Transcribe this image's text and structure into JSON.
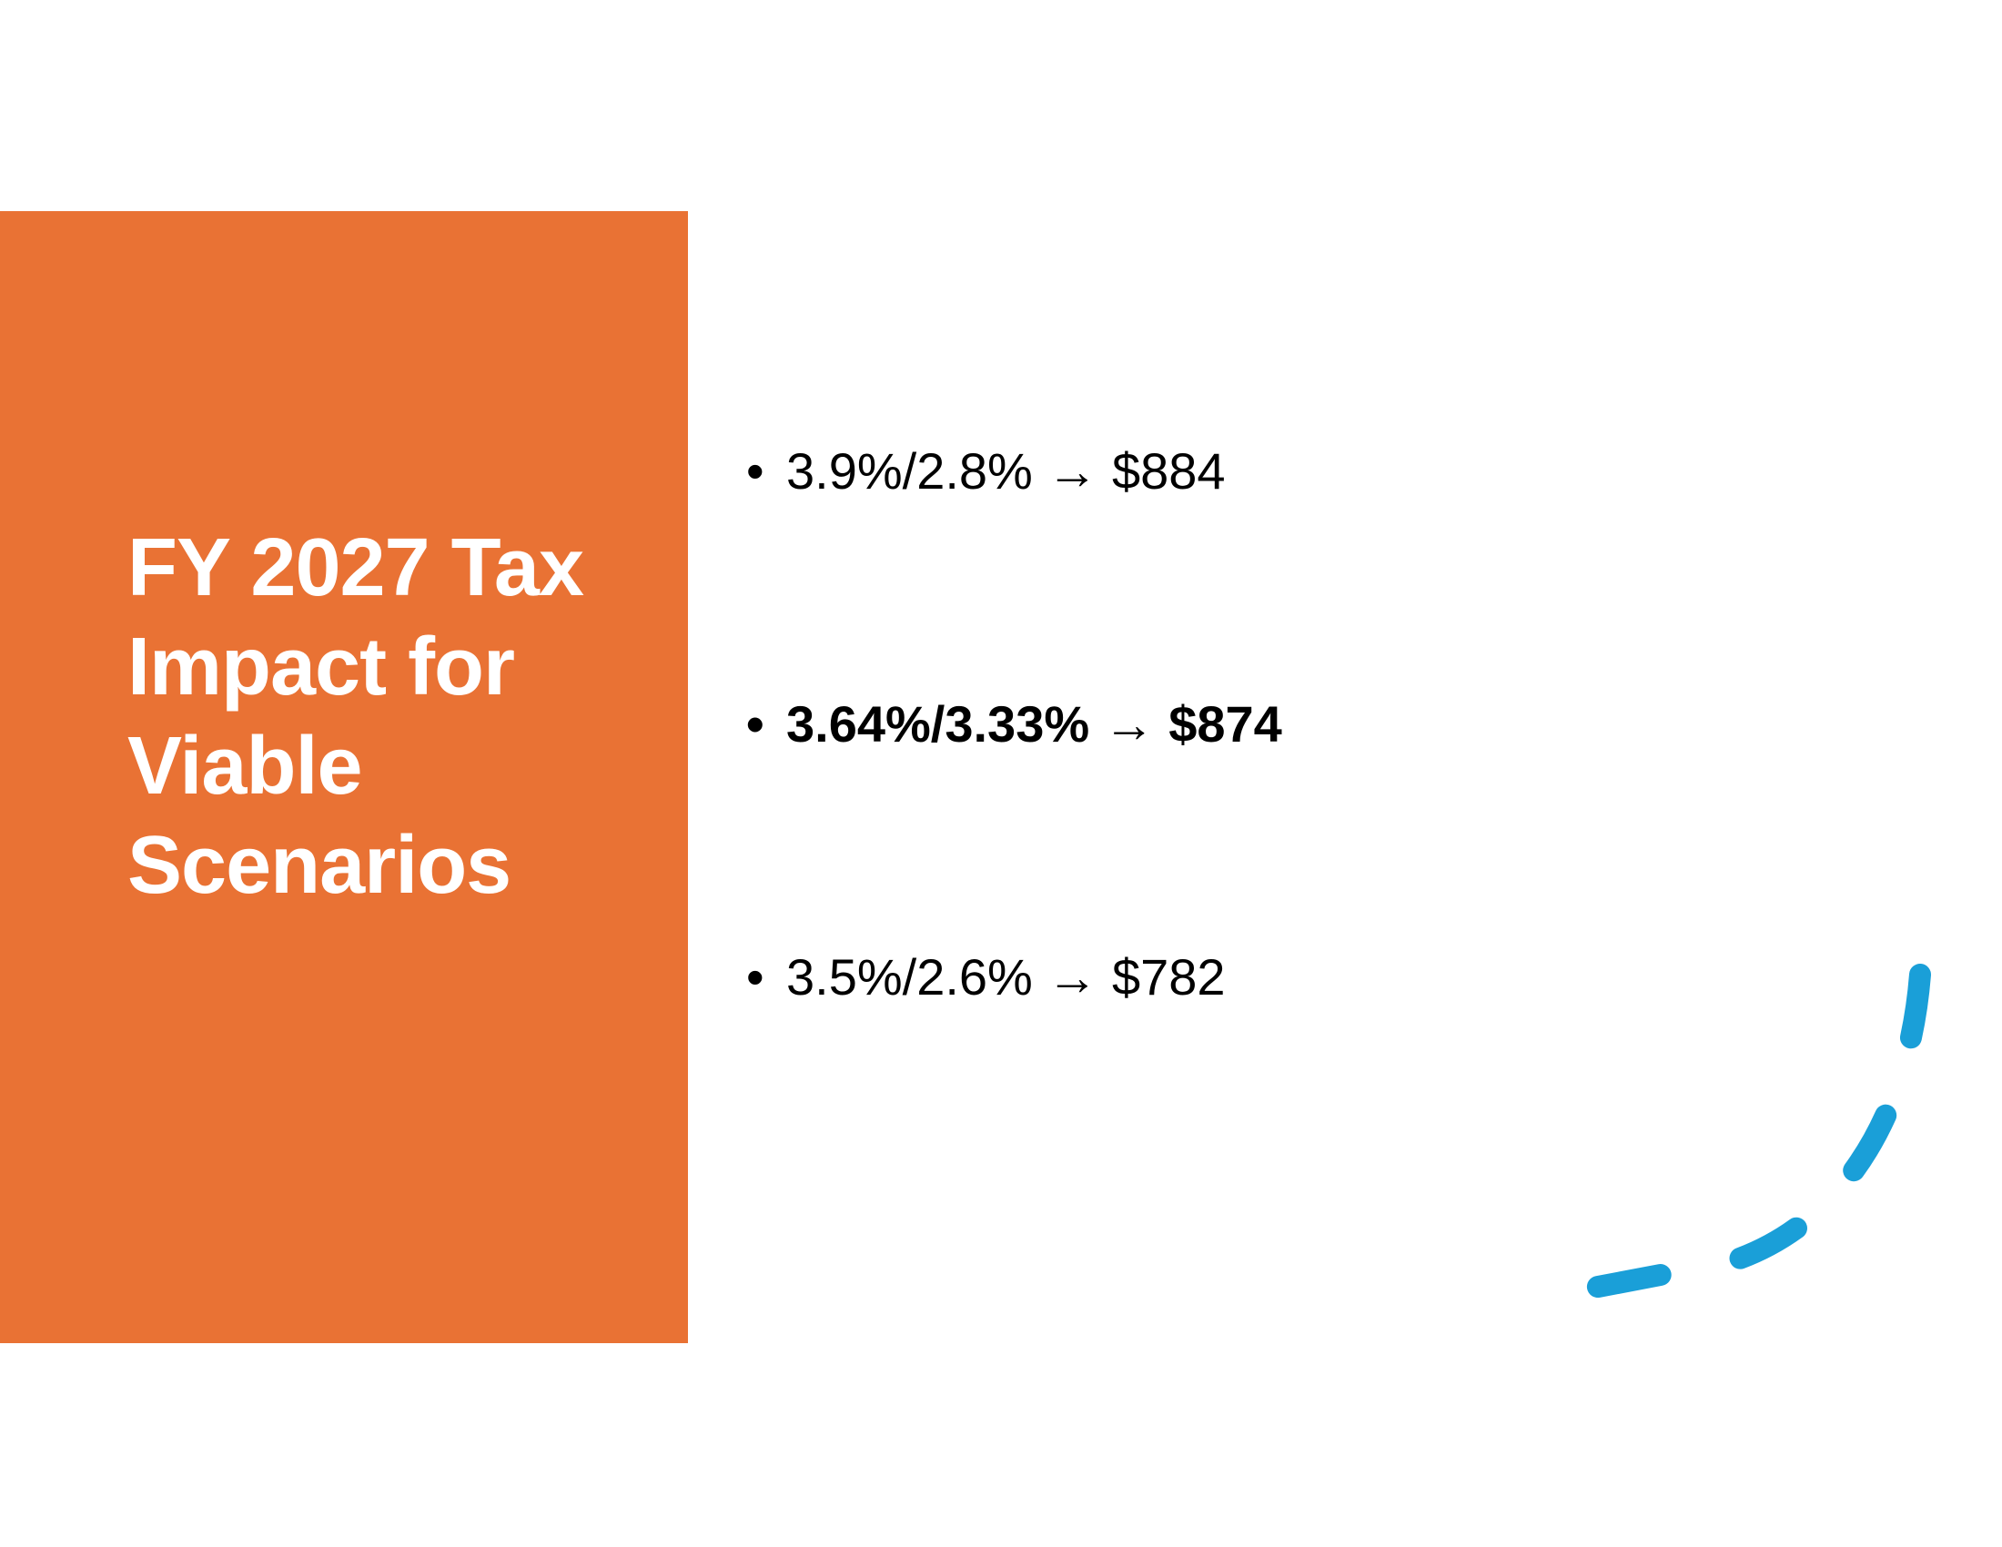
{
  "slide": {
    "title": "FY 2027 Tax Impact for Viable Scenarios",
    "bullets": [
      {
        "text": "3.9%/2.8% → $884",
        "emphasis": false
      },
      {
        "text": "3.64%/3.33% → $874",
        "emphasis": true
      },
      {
        "text": "3.5%/2.6% → $782",
        "emphasis": false
      }
    ],
    "bullet_glyph": "•"
  },
  "colors": {
    "panel": "#e97234",
    "title_text": "#ffffff",
    "body_text": "#000000",
    "accent_arc": "#1a9fd8",
    "background": "#ffffff"
  }
}
